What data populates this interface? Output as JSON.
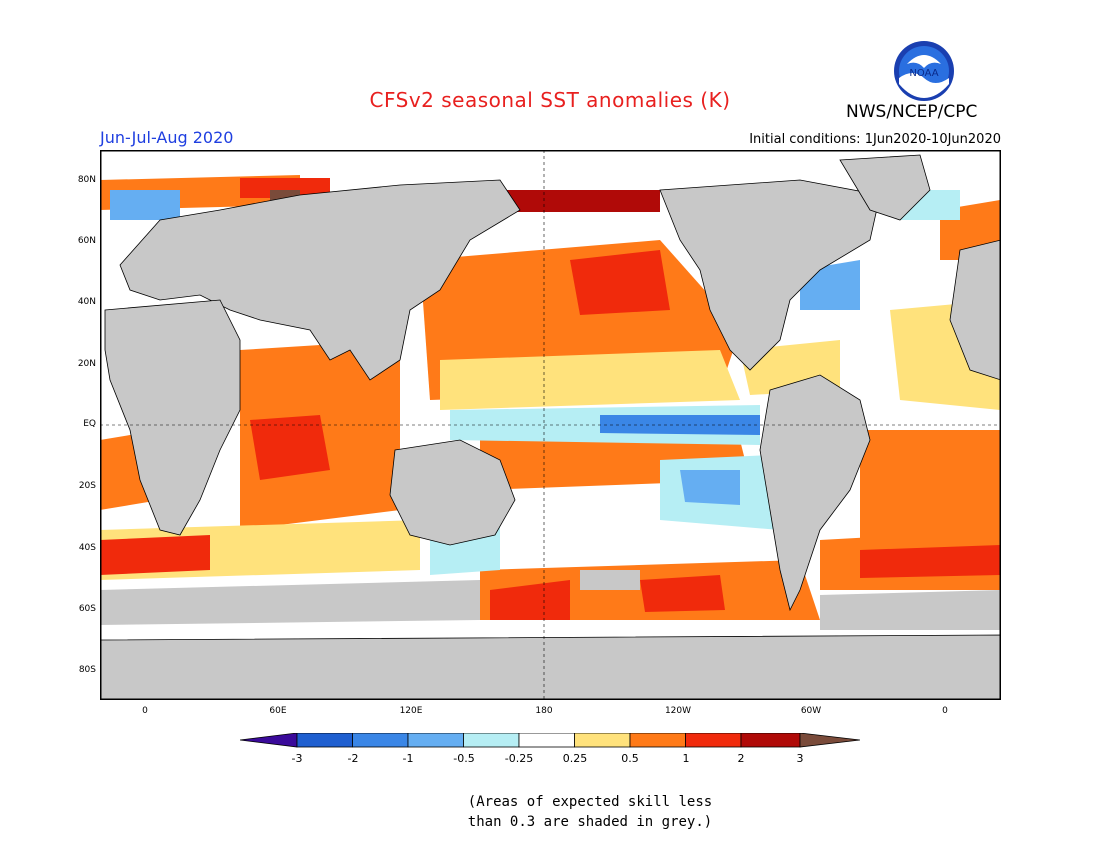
{
  "header": {
    "title": "CFSv2 seasonal SST anomalies (K)",
    "agency": "NWS/NCEP/CPC",
    "logo_text": "NOAA",
    "season": "Jun-Jul-Aug 2020",
    "initial_conditions": "Initial conditions: 1Jun2020-10Jun2020"
  },
  "map": {
    "lon_labels": [
      "0",
      "60E",
      "120E",
      "180",
      "120W",
      "60W",
      "0"
    ],
    "lat_labels": [
      "80N",
      "60N",
      "40N",
      "20N",
      "EQ",
      "20S",
      "40S",
      "60S",
      "80S"
    ]
  },
  "colorbar": {
    "labels": [
      "-3",
      "-2",
      "-1",
      "-0.5",
      "-0.25",
      "0.25",
      "0.5",
      "1",
      "2",
      "3"
    ],
    "colors": {
      "lt_m3": "#3a0a9a",
      "m3_m2": "#1f5fd0",
      "m2_m1": "#3a86e6",
      "m1_m05": "#65aef2",
      "m05_m025": "#b6eef4",
      "m025_025": "#ffffff",
      "025_05": "#ffe27c",
      "05_1": "#ff7a18",
      "1_2": "#f02a0c",
      "2_3": "#b00a08",
      "gt_3": "#7a4b3a"
    },
    "land_color": "#c8c8c8"
  },
  "note": {
    "line1": "(Areas of expected skill less",
    "line2": "than 0.3 are shaded in grey.)"
  }
}
